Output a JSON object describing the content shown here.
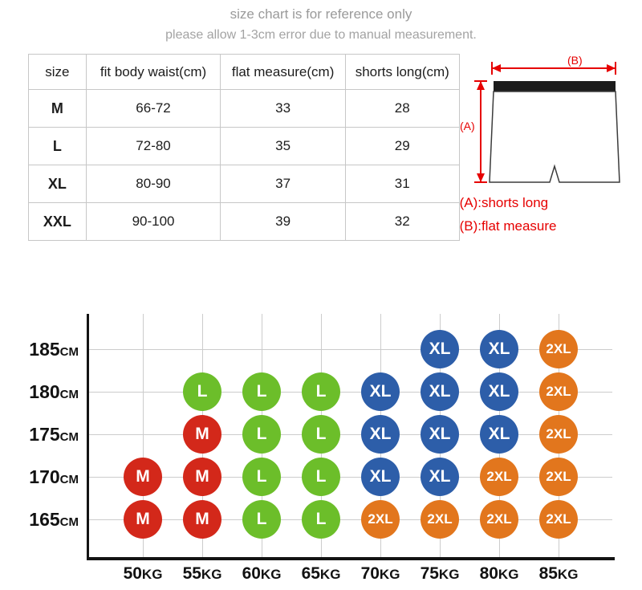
{
  "header": {
    "line1": "size chart is for reference only",
    "line2": "please allow 1-3cm error due to manual measurement."
  },
  "size_table": {
    "columns": [
      "size",
      "fit body waist(cm)",
      "flat measure(cm)",
      "shorts long(cm)"
    ],
    "rows": [
      [
        "M",
        "66-72",
        "33",
        "28"
      ],
      [
        "L",
        "72-80",
        "35",
        "29"
      ],
      [
        "XL",
        "80-90",
        "37",
        "31"
      ],
      [
        "XXL",
        "90-100",
        "39",
        "32"
      ]
    ]
  },
  "diagram": {
    "label_a": "(A)",
    "label_b": "(B)",
    "legend_a": "(A):shorts long",
    "legend_b": "(B):flat measure",
    "accent_color": "#e60000"
  },
  "chart_data": {
    "type": "heatmap",
    "x_labels": [
      {
        "value": "50",
        "unit": "KG"
      },
      {
        "value": "55",
        "unit": "KG"
      },
      {
        "value": "60",
        "unit": "KG"
      },
      {
        "value": "65",
        "unit": "KG"
      },
      {
        "value": "70",
        "unit": "KG"
      },
      {
        "value": "75",
        "unit": "KG"
      },
      {
        "value": "80",
        "unit": "KG"
      },
      {
        "value": "85",
        "unit": "KG"
      }
    ],
    "y_labels": [
      {
        "value": "185",
        "unit": "CM"
      },
      {
        "value": "180",
        "unit": "CM"
      },
      {
        "value": "175",
        "unit": "CM"
      },
      {
        "value": "170",
        "unit": "CM"
      },
      {
        "value": "165",
        "unit": "CM"
      }
    ],
    "grid": true,
    "matrix": [
      [
        null,
        null,
        null,
        null,
        null,
        "XL",
        "XL",
        "2XL"
      ],
      [
        null,
        "L",
        "L",
        "L",
        "XL",
        "XL",
        "XL",
        "2XL"
      ],
      [
        null,
        "M",
        "L",
        "L",
        "XL",
        "XL",
        "XL",
        "2XL"
      ],
      [
        "M",
        "M",
        "L",
        "L",
        "XL",
        "XL",
        "2XL",
        "2XL"
      ],
      [
        "M",
        "M",
        "L",
        "L",
        "2XL",
        "2XL",
        "2XL",
        "2XL"
      ]
    ],
    "size_colors": {
      "M": "#d3281a",
      "L": "#6cbe2a",
      "XL": "#2d5ea9",
      "2XL": "#e2761d"
    }
  }
}
